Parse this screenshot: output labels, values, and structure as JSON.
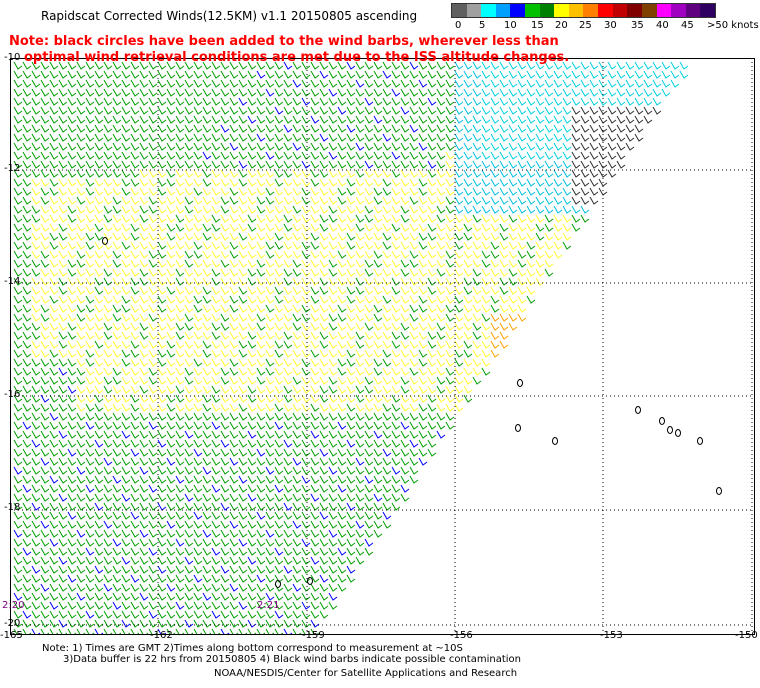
{
  "title": "Rapidscat Corrected Winds(12.5KM) v1.1 20150805 ascending",
  "note_line1": "Note: black circles have been added to the wind barbs, wherever less than",
  "note_line2": "optimal wind retrieval conditions are met due to the ISS altitude changes.",
  "legend": {
    "labels": [
      "0",
      "5",
      "10",
      "15",
      "20",
      "25",
      "30",
      "35",
      "40",
      "45",
      ">50 knots"
    ],
    "colors": [
      "#606060",
      "#a0a0a0",
      "#00ffff",
      "#00a0ff",
      "#0000ff",
      "#00c000",
      "#008000",
      "#ffff00",
      "#ffc000",
      "#ff8000",
      "#ff0000",
      "#c00000",
      "#800000",
      "#804000",
      "#ff00ff",
      "#a000c0",
      "#600080",
      "#300060"
    ]
  },
  "map": {
    "lat_labels": [
      "-10",
      "-12",
      "-14",
      "-16",
      "-18",
      "-20"
    ],
    "lon_labels": [
      "-165",
      "-162",
      "-159",
      "-156",
      "-153",
      "-150"
    ],
    "time_labels": [
      "2:20",
      "2:21"
    ]
  },
  "footnote_line1": "Note: 1) Times are GMT 2)Times along bottom correspond to measurement at ~10S",
  "footnote_line2": "3)Data buffer is 22 hrs from 20150805 4) Black wind barbs indicate possible contamination",
  "credit": "NOAA/NESDIS/Center for Satellite Applications and Research"
}
